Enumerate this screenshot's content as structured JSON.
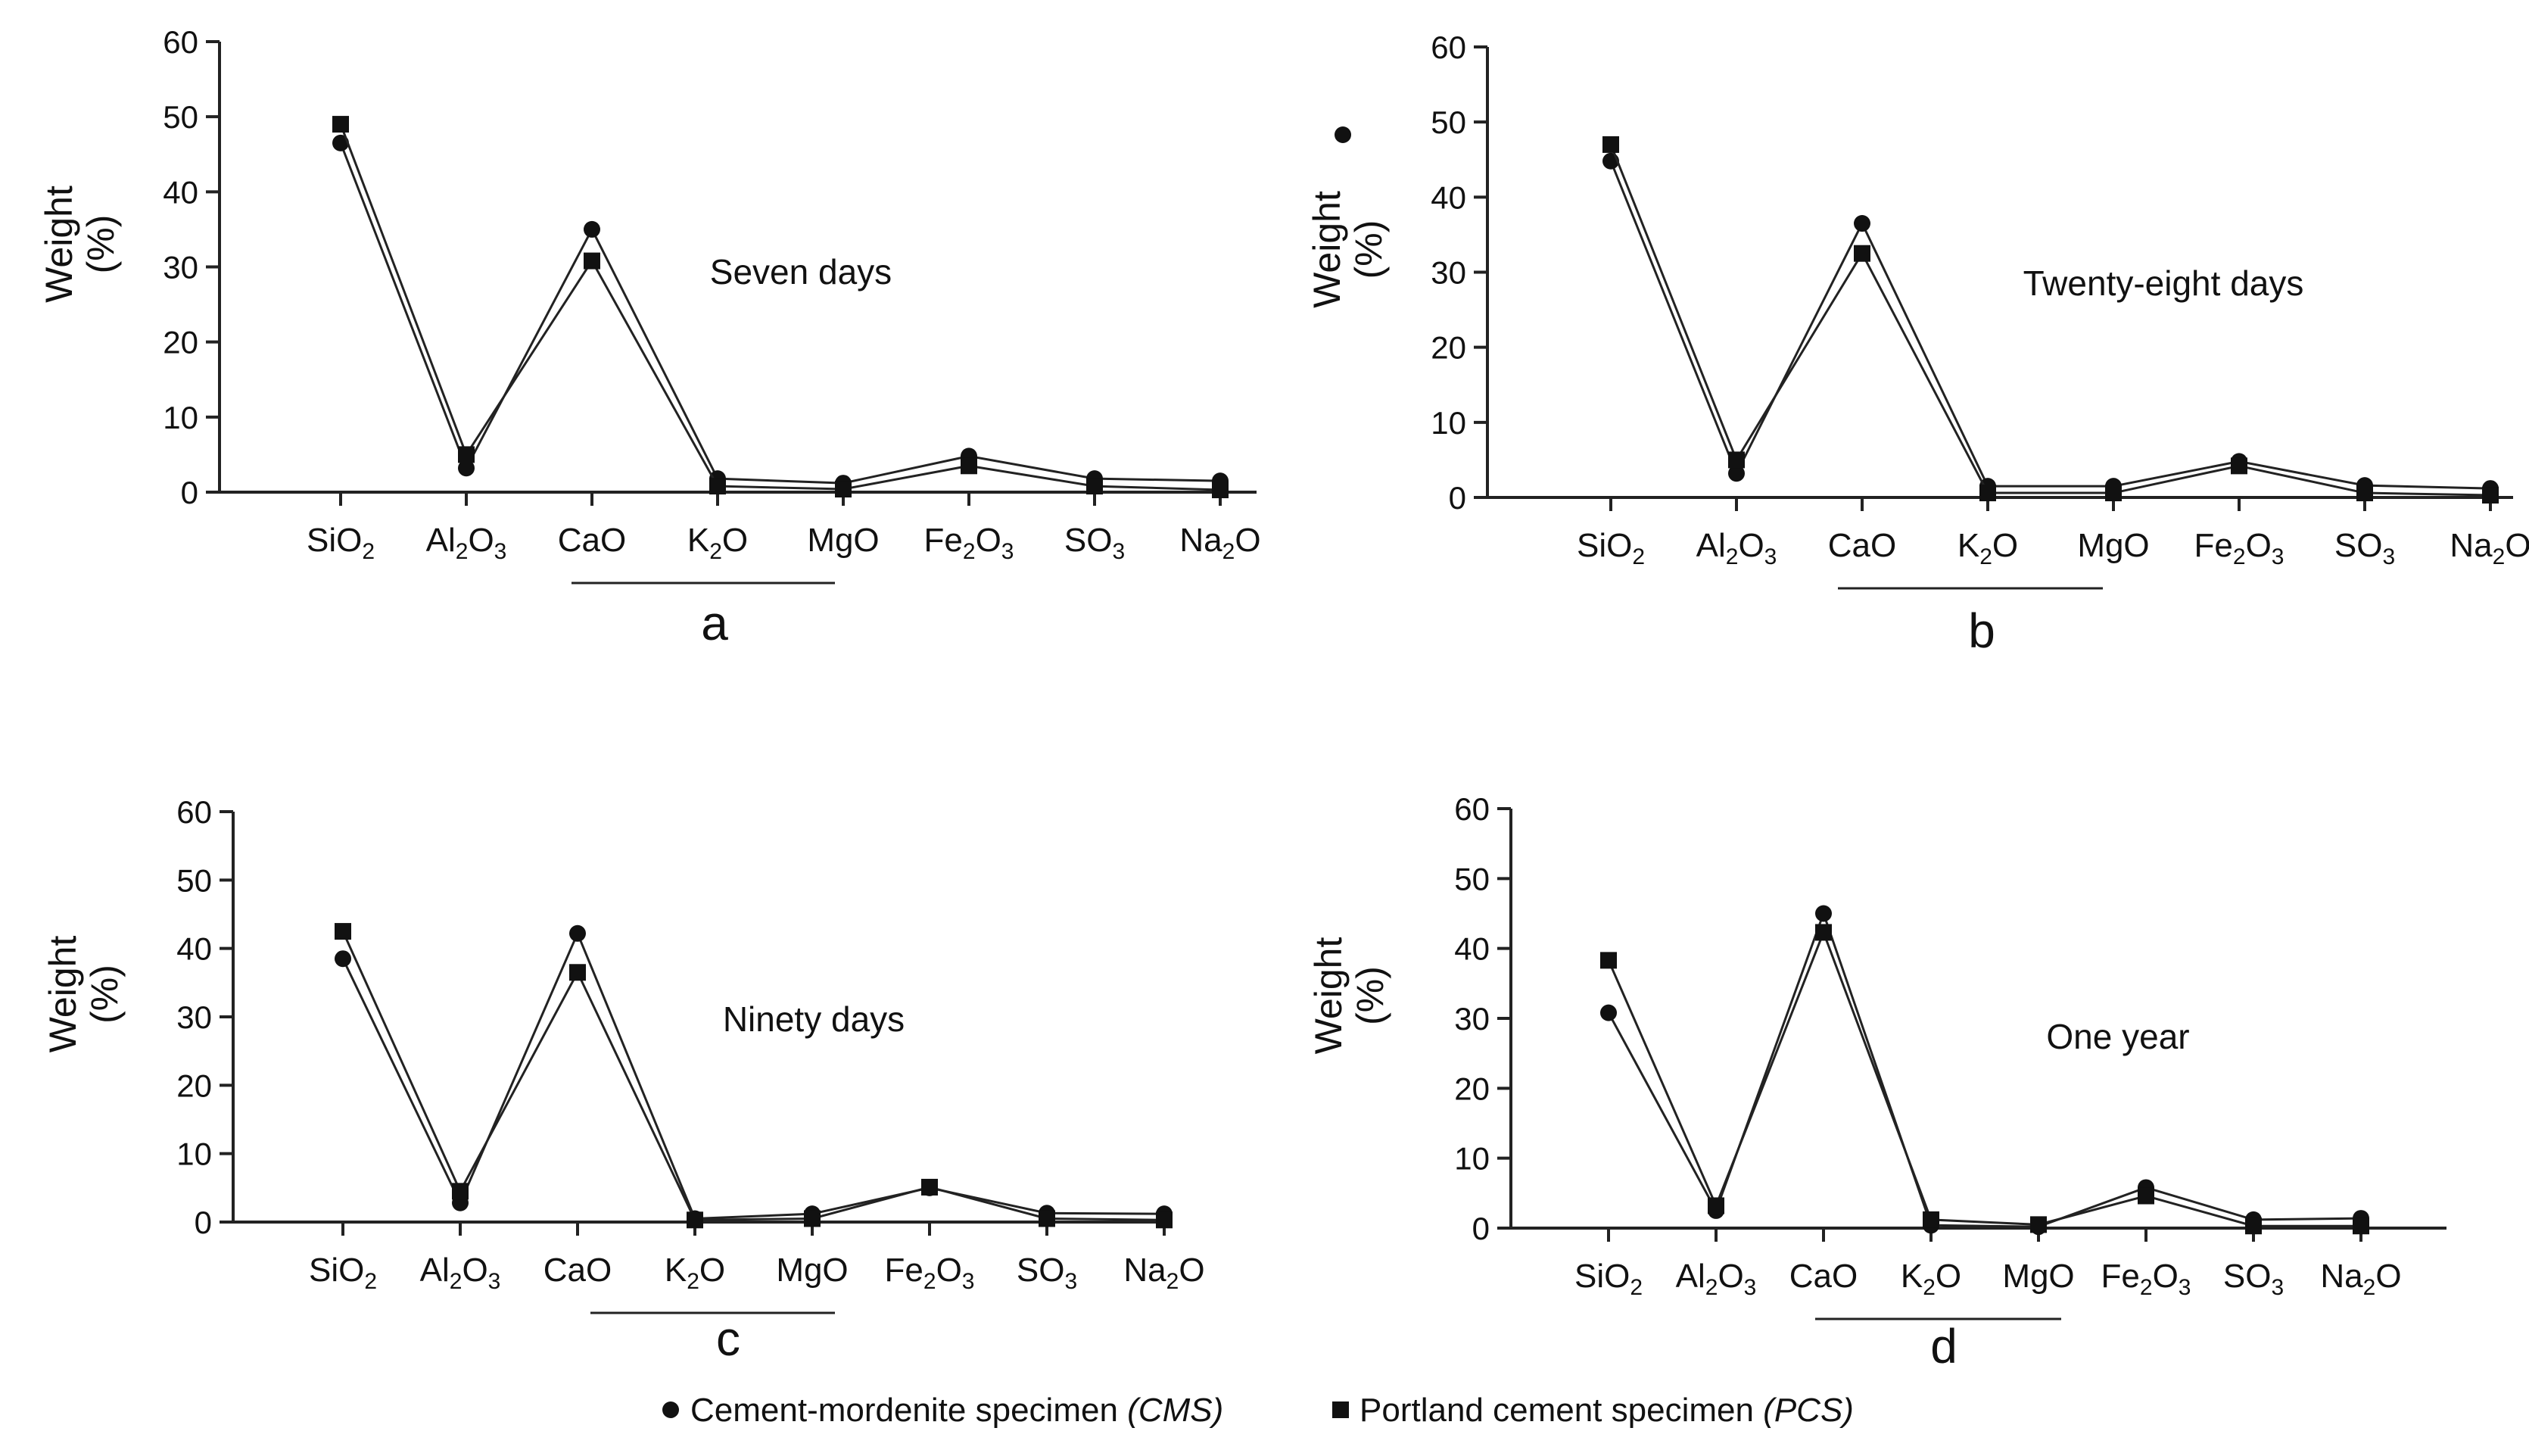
{
  "chart_data": [
    {
      "type": "line",
      "panel": "a",
      "annotation": "Seven days",
      "ylabel_top": "Weight",
      "ylabel_bottom": "(%)",
      "ylim": [
        0,
        60
      ],
      "yticks": [
        0,
        10,
        20,
        30,
        40,
        50,
        60
      ],
      "categories": [
        "SiO2",
        "Al2O3",
        "CaO",
        "K2O",
        "MgO",
        "Fe2O3",
        "SO3",
        "Na2O"
      ],
      "series": [
        {
          "name": "Cement-mordenite specimen (CMS)",
          "marker": "circle",
          "values": [
            46.5,
            3.2,
            35.0,
            1.8,
            1.2,
            4.8,
            1.8,
            1.5
          ]
        },
        {
          "name": "Portland cement specimen (PCS)",
          "marker": "square",
          "values": [
            49.0,
            5.0,
            30.8,
            0.8,
            0.4,
            3.5,
            0.8,
            0.3
          ]
        }
      ]
    },
    {
      "type": "line",
      "panel": "b",
      "annotation": "Twenty-eight days",
      "ylabel_top": "Weight",
      "ylabel_bottom": "(%)",
      "ylim": [
        0,
        60
      ],
      "yticks": [
        0,
        10,
        20,
        30,
        40,
        50,
        60
      ],
      "categories": [
        "SiO2",
        "Al2O3",
        "CaO",
        "K2O",
        "MgO",
        "Fe2O3",
        "SO3",
        "Na2O"
      ],
      "series": [
        {
          "name": "Cement-mordenite specimen (CMS)",
          "marker": "circle",
          "values": [
            44.8,
            3.2,
            36.5,
            1.5,
            1.5,
            4.8,
            1.6,
            1.2
          ]
        },
        {
          "name": "Portland cement specimen (PCS)",
          "marker": "square",
          "values": [
            47.0,
            5.0,
            32.5,
            0.6,
            0.6,
            4.2,
            0.6,
            0.3
          ]
        }
      ]
    },
    {
      "type": "line",
      "panel": "c",
      "annotation": "Ninety days",
      "ylabel_top": "Weight",
      "ylabel_bottom": "(%)",
      "ylim": [
        0,
        60
      ],
      "yticks": [
        0,
        10,
        20,
        30,
        40,
        50,
        60
      ],
      "categories": [
        "SiO2",
        "Al2O3",
        "CaO",
        "K2O",
        "MgO",
        "Fe2O3",
        "SO3",
        "Na2O"
      ],
      "series": [
        {
          "name": "Cement-mordenite specimen (CMS)",
          "marker": "circle",
          "values": [
            38.5,
            2.8,
            42.2,
            0.5,
            1.2,
            5.0,
            1.3,
            1.2
          ]
        },
        {
          "name": "Portland cement specimen (PCS)",
          "marker": "square",
          "values": [
            42.5,
            4.5,
            36.5,
            0.3,
            0.5,
            5.1,
            0.5,
            0.3
          ]
        }
      ]
    },
    {
      "type": "line",
      "panel": "d",
      "annotation": "One year",
      "ylabel_top": "Weight",
      "ylabel_bottom": "(%)",
      "ylim": [
        0,
        60
      ],
      "yticks": [
        0,
        10,
        20,
        30,
        40,
        50,
        60
      ],
      "categories": [
        "SiO2",
        "Al2O3",
        "CaO",
        "K2O",
        "MgO",
        "Fe2O3",
        "SO3",
        "Na2O"
      ],
      "series": [
        {
          "name": "Cement-mordenite specimen (CMS)",
          "marker": "circle",
          "values": [
            30.8,
            2.5,
            45.0,
            0.4,
            0.2,
            5.8,
            1.2,
            1.4
          ]
        },
        {
          "name": "Portland cement specimen (PCS)",
          "marker": "square",
          "values": [
            38.3,
            3.2,
            42.3,
            1.2,
            0.5,
            4.6,
            0.3,
            0.3
          ]
        }
      ]
    }
  ],
  "legend": {
    "cms_label": "Cement-mordenite specimen",
    "cms_abbr": "(CMS)",
    "pcs_label": "Portland cement specimen",
    "pcs_abbr": "(PCS)"
  },
  "stray_marker": "circle"
}
